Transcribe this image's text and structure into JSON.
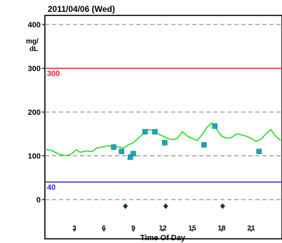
{
  "chart_data": {
    "type": "line",
    "title": "2011/04/06 (Wed)",
    "xlabel": "Time Of Day",
    "ylabel_lines": [
      "mg/",
      "dL"
    ],
    "xlim": [
      0,
      24
    ],
    "ylim": [
      -60,
      410
    ],
    "x_ticks": [
      3,
      6,
      9,
      12,
      15,
      18,
      21
    ],
    "y_ticks": [
      0,
      100,
      200,
      300,
      400
    ],
    "dashed_grid_y": [
      0,
      100,
      200,
      400
    ],
    "thresholds": [
      {
        "label": "300",
        "value": 300,
        "color": "#e8202a"
      },
      {
        "label": "40",
        "value": 40,
        "color": "#2b2bd9"
      }
    ],
    "colors": {
      "sensor_line": "#22dd22",
      "meter_marker": "#1aa6b8",
      "event_marker": "#0f3d1f"
    },
    "series": [
      {
        "kind": "line",
        "x": [
          0,
          0.7,
          1.4,
          2.2,
          2.8,
          3.2,
          3.6,
          4.2,
          4.8,
          5.3,
          5.9,
          6.4,
          7.0,
          7.5,
          8.0,
          8.5,
          9.0,
          9.5,
          10.0,
          10.5,
          11.0,
          11.5,
          12.0,
          12.5,
          13.0,
          13.5,
          14.0,
          14.5,
          15.0,
          15.5,
          16.0,
          16.5,
          17.0,
          17.5,
          18.0,
          18.5,
          19.0,
          19.5,
          20.0,
          20.5,
          21.0,
          21.5,
          22.0,
          22.5,
          23.0,
          23.5,
          24.0
        ],
        "y": [
          115,
          112,
          104,
          100,
          106,
          114,
          108,
          111,
          110,
          118,
          120,
          123,
          121,
          120,
          118,
          125,
          130,
          140,
          150,
          160,
          158,
          150,
          145,
          140,
          137,
          140,
          155,
          145,
          140,
          135,
          148,
          165,
          175,
          160,
          145,
          140,
          142,
          150,
          148,
          145,
          140,
          133,
          138,
          150,
          160,
          145,
          135
        ]
      },
      {
        "kind": "markers",
        "x": [
          7.0,
          7.8,
          8.7,
          9.0,
          10.2,
          11.2,
          12.2,
          16.2,
          17.3,
          21.8
        ],
        "y": [
          120,
          110,
          97,
          105,
          155,
          155,
          130,
          125,
          168,
          110
        ]
      },
      {
        "kind": "events",
        "x": [
          8.2,
          12.3,
          18.1
        ],
        "y": [
          -15,
          -15,
          -15
        ]
      }
    ]
  }
}
